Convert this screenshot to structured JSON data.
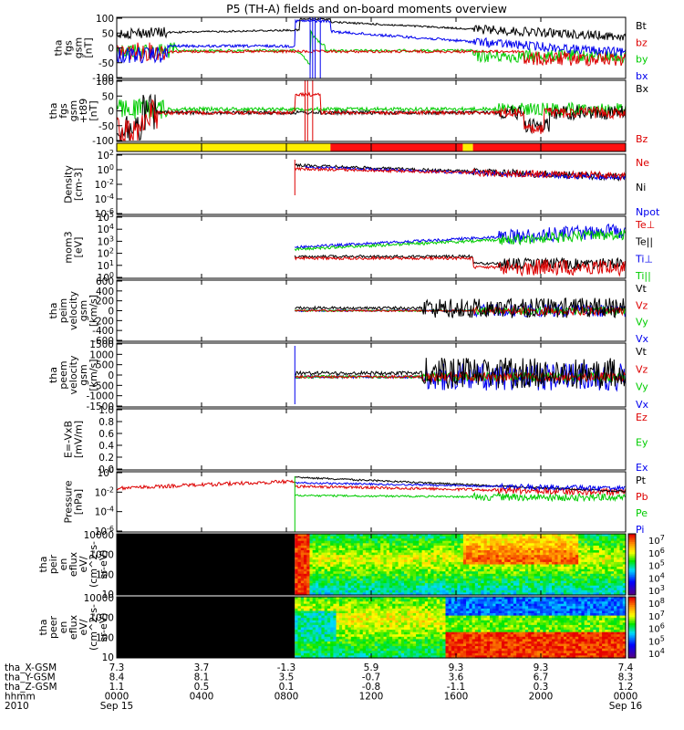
{
  "title": "P5 (TH-A) fields and on-board moments overview",
  "colors": {
    "black": "#000000",
    "red": "#dd0000",
    "green": "#00cc00",
    "blue": "#0000ee",
    "yellow": "#ffee00",
    "brightred": "#ff1111"
  },
  "chart_data": [
    {
      "type": "line",
      "name": "fgs",
      "ylabel": [
        "tha",
        "fgs",
        "gsm",
        "[nT]"
      ],
      "yticks": [
        "100",
        "50",
        "0",
        "-50",
        "-100"
      ],
      "ylim": [
        -100,
        100
      ],
      "legend": [
        "Bt",
        "bz",
        "by",
        "bx"
      ],
      "legend_colors": [
        "black",
        "red",
        "green",
        "blue"
      ]
    },
    {
      "type": "line",
      "name": "fgs2",
      "ylabel": [
        "tha",
        "fgs",
        "gsm",
        "+t89",
        "[nT]"
      ],
      "yticks": [
        "100",
        "50",
        "0",
        "-50",
        "-100"
      ],
      "ylim": [
        -120,
        100
      ],
      "legend": [
        "Bx",
        "Bz"
      ],
      "legend_colors": [
        "black",
        "red"
      ]
    },
    {
      "type": "bar",
      "name": "mode-bar",
      "segments": [
        {
          "from": 0,
          "to": 0.42,
          "color": "yellow"
        },
        {
          "from": 0.42,
          "to": 0.68,
          "color": "brightred"
        },
        {
          "from": 0.68,
          "to": 0.7,
          "color": "yellow"
        },
        {
          "from": 0.7,
          "to": 1.0,
          "color": "brightred"
        }
      ]
    },
    {
      "type": "line",
      "name": "density",
      "ylabel": [
        "Density",
        "[cm-3]"
      ],
      "yticks": [
        "10^2",
        "10^0",
        "10^-2",
        "10^-4",
        "10^-6"
      ],
      "ylim_log": [
        -7,
        3
      ],
      "legend": [
        "Ne",
        "Ni",
        "Npot"
      ],
      "legend_colors": [
        "red",
        "black",
        "blue"
      ]
    },
    {
      "type": "line",
      "name": "temperature",
      "ylabel": [
        "mom3",
        "[eV]"
      ],
      "yticks": [
        "10^5",
        "10^4",
        "10^3",
        "10^2",
        "10^1",
        "10^0"
      ],
      "ylim_log": [
        0,
        5
      ],
      "legend": [
        "Te⊥",
        "Te||",
        "Ti⊥",
        "Ti||"
      ],
      "legend_colors": [
        "red",
        "black",
        "blue",
        "green"
      ]
    },
    {
      "type": "line",
      "name": "peim-velocity",
      "ylabel": [
        "tha",
        "peim",
        "velocity",
        "gsm",
        "[km/s]"
      ],
      "yticks": [
        "600",
        "400",
        "200",
        "0",
        "-200",
        "-400",
        "-600"
      ],
      "ylim": [
        -600,
        600
      ],
      "legend": [
        "Vt",
        "Vz",
        "Vy",
        "Vx"
      ],
      "legend_colors": [
        "black",
        "red",
        "green",
        "blue"
      ]
    },
    {
      "type": "line",
      "name": "peem-velocity",
      "ylabel": [
        "tha",
        "peem",
        "velocity",
        "gsm",
        "[km/s]"
      ],
      "yticks": [
        "1500",
        "1000",
        "500",
        "0",
        "-500",
        "-1000",
        "-1500"
      ],
      "ylim": [
        -1500,
        1500
      ],
      "legend": [
        "Vt",
        "Vz",
        "Vy",
        "Vx"
      ],
      "legend_colors": [
        "black",
        "red",
        "green",
        "blue"
      ]
    },
    {
      "type": "line",
      "name": "efield",
      "ylabel": [
        "E=-VxB",
        "[mV/m]"
      ],
      "yticks": [
        "1.0",
        "0.8",
        "0.6",
        "0.4",
        "0.2",
        "0.0"
      ],
      "ylim": [
        0,
        1
      ],
      "legend": [
        "Ez",
        "Ey",
        "Ex"
      ],
      "legend_colors": [
        "red",
        "green",
        "blue"
      ]
    },
    {
      "type": "line",
      "name": "pressure",
      "ylabel": [
        "Pressure",
        "[nPa]"
      ],
      "yticks": [
        "10^0",
        "10^-2",
        "10^-4",
        "10^-6"
      ],
      "ylim_log": [
        -7,
        1
      ],
      "legend": [
        "Pt",
        "Pb",
        "Pe",
        "Pi"
      ],
      "legend_colors": [
        "black",
        "red",
        "green",
        "blue"
      ]
    },
    {
      "type": "heatmap",
      "name": "peir-spectrogram",
      "ylabel": [
        "tha",
        "peir",
        "en",
        "eflux",
        "eV/",
        "(cm^2-s-",
        "sr-eV)"
      ],
      "yticks": [
        "10000",
        "1000",
        "100",
        "10"
      ],
      "colorbar": [
        "10^7",
        "10^6",
        "10^5",
        "10^4",
        "10^3"
      ]
    },
    {
      "type": "heatmap",
      "name": "peer-spectrogram",
      "ylabel": [
        "tha",
        "peer",
        "en",
        "eflux",
        "eV/",
        "(cm^2-s-",
        "sr-eV)"
      ],
      "yticks": [
        "10000",
        "1000",
        "100",
        "10"
      ],
      "colorbar": [
        "10^8",
        "10^7",
        "10^6",
        "10^5",
        "10^4"
      ]
    }
  ],
  "xaxis": {
    "rows": [
      {
        "label": "tha_X-GSM",
        "values": [
          "7.3",
          "3.7",
          "-1.3",
          "5.9",
          "9.3",
          "9.3",
          "7.4"
        ]
      },
      {
        "label": "tha_Y-GSM",
        "values": [
          "8.4",
          "8.1",
          "3.5",
          "-0.7",
          "3.6",
          "6.7",
          "8.3"
        ]
      },
      {
        "label": "tha_Z-GSM",
        "values": [
          "1.1",
          "0.5",
          "0.1",
          "-0.8",
          "-1.1",
          "0.3",
          "1.2"
        ]
      },
      {
        "label": "hhmm",
        "values": [
          "0000",
          "0400",
          "0800",
          "1200",
          "1600",
          "2000",
          "0000"
        ]
      },
      {
        "label": "2010",
        "values": [
          "Sep 15",
          "",
          "",
          "",
          "",
          "",
          "Sep 16"
        ]
      }
    ]
  }
}
